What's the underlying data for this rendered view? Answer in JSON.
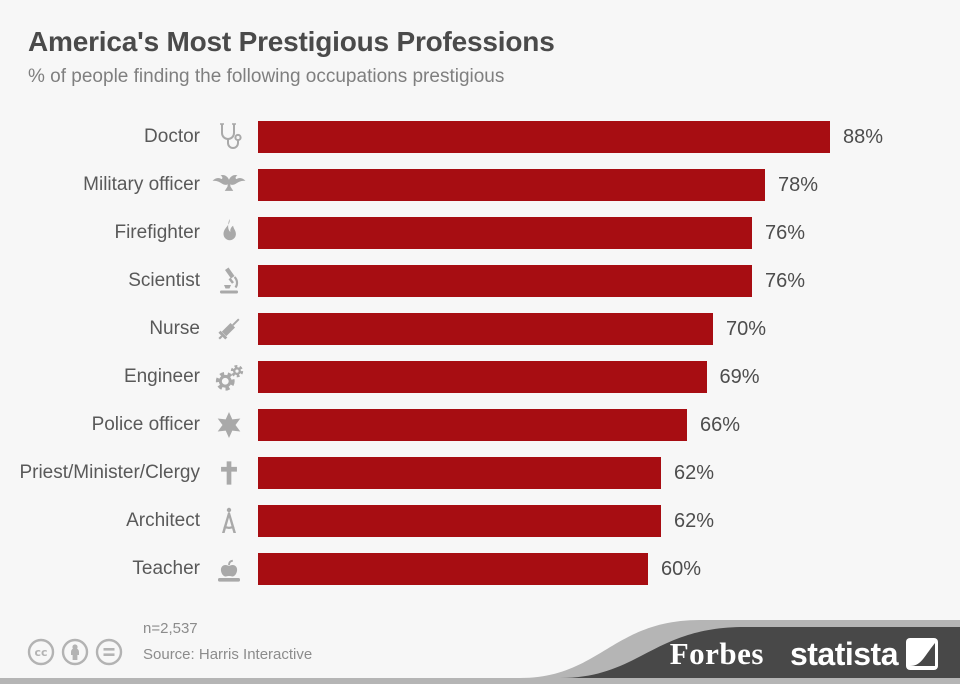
{
  "header": {
    "title": "America's Most Prestigious Professions",
    "subtitle": "% of people finding the following occupations prestigious"
  },
  "chart_data": {
    "type": "bar",
    "orientation": "horizontal",
    "categories": [
      "Doctor",
      "Military officer",
      "Firefighter",
      "Scientist",
      "Nurse",
      "Engineer",
      "Police officer",
      "Priest/Minister/Clergy",
      "Architect",
      "Teacher"
    ],
    "values": [
      88,
      78,
      76,
      76,
      70,
      69,
      66,
      62,
      62,
      60
    ],
    "value_labels": [
      "88%",
      "78%",
      "76%",
      "76%",
      "70%",
      "69%",
      "66%",
      "62%",
      "62%",
      "60%"
    ],
    "icons": [
      "stethoscope",
      "eagle-insignia",
      "flame",
      "microscope",
      "syringe",
      "gears",
      "sheriff-star",
      "cross",
      "drafting-compass",
      "apple-on-book"
    ],
    "title": "America's Most Prestigious Professions",
    "xlabel": "",
    "ylabel": "",
    "xlim": [
      0,
      100
    ],
    "grid": false,
    "legend": false,
    "bar_color": "#a70d12",
    "label_color": "#595959",
    "icon_color": "#a9a9a9"
  },
  "footer": {
    "sample_size": "n=2,537",
    "source": "Source: Harris Interactive",
    "license_icons": [
      "cc",
      "attribution",
      "equals"
    ],
    "brands": {
      "forbes": "Forbes",
      "statista": "statista"
    }
  }
}
